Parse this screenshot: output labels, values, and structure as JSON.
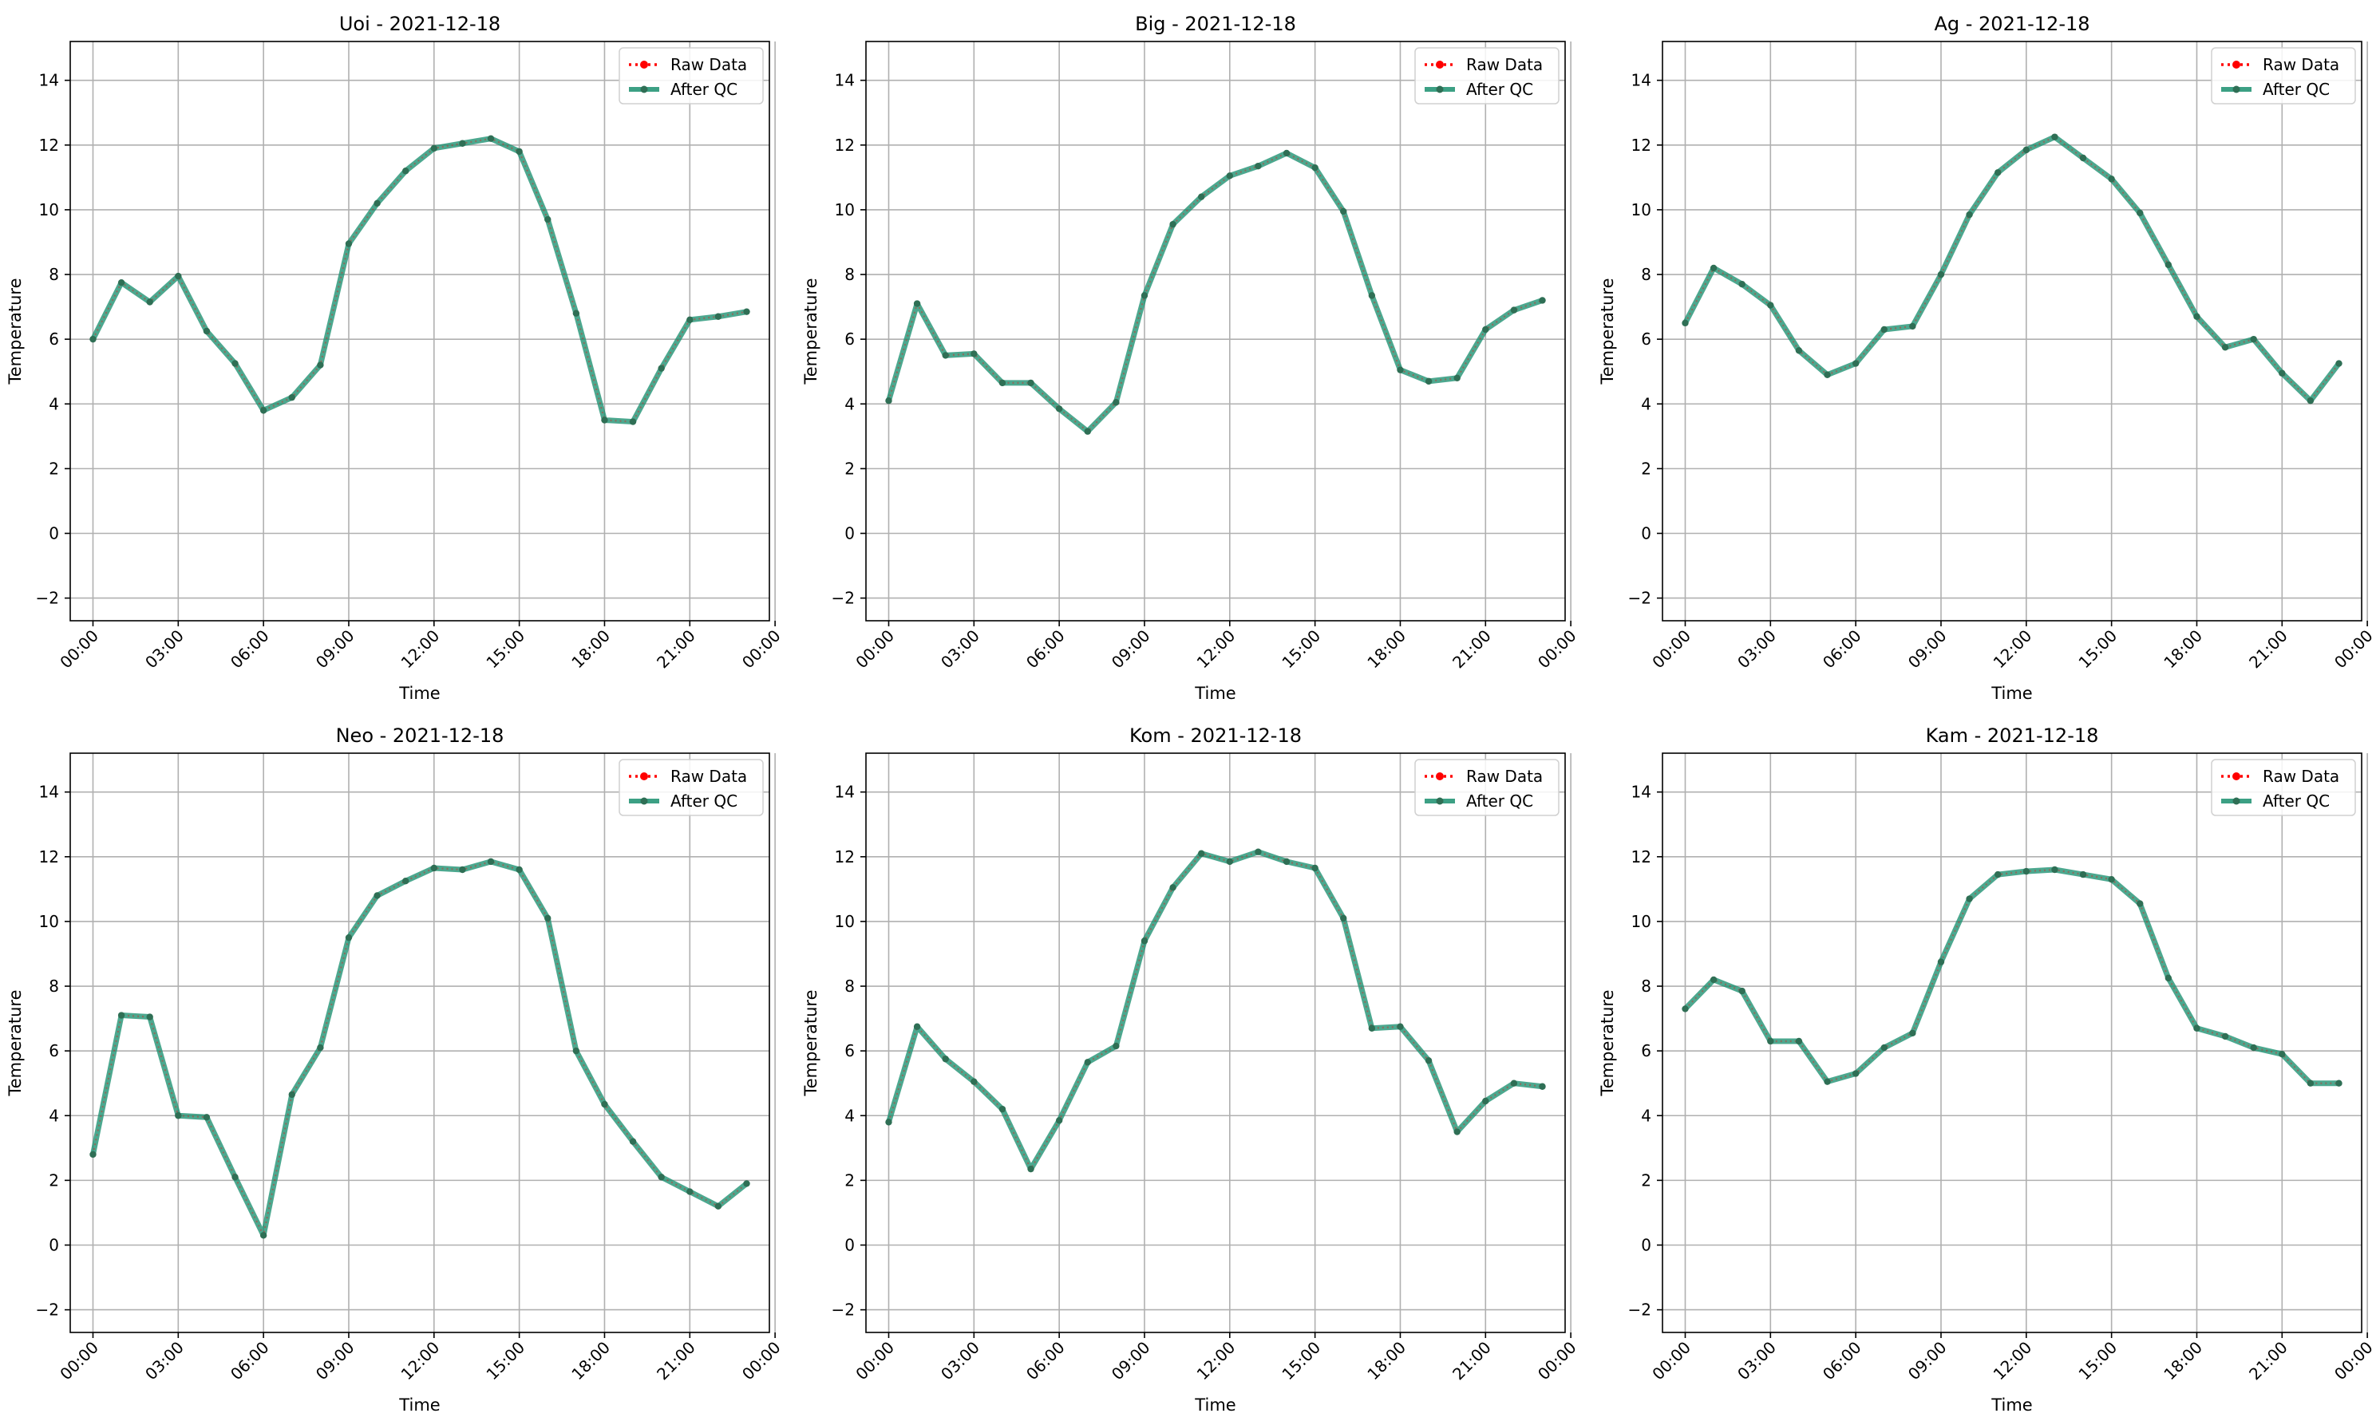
{
  "figure": {
    "legend_labels": {
      "raw": "Raw Data",
      "qc": "After QC"
    },
    "colors": {
      "raw": "#ff0000",
      "qc": "#1a8f6f",
      "grid": "#b0b0b0",
      "marker": "#2f6f55"
    },
    "legend_position": "top-right",
    "grid": true
  },
  "chart_data": [
    {
      "type": "line",
      "title": "Uoi - 2021-12-18",
      "xlabel": "Time",
      "ylabel": "Temperature",
      "ylim": [
        -2.7,
        15.2
      ],
      "yticks": [
        -2,
        0,
        2,
        4,
        6,
        8,
        10,
        12,
        14
      ],
      "xlim": [
        -0.8,
        23.8
      ],
      "xticks": [
        0,
        3,
        6,
        9,
        12,
        15,
        18,
        21,
        24
      ],
      "xticklabels": [
        "00:00",
        "03:00",
        "06:00",
        "09:00",
        "12:00",
        "15:00",
        "18:00",
        "21:00",
        "00:00"
      ],
      "x": [
        0,
        1,
        2,
        3,
        4,
        5,
        6,
        7,
        8,
        9,
        10,
        11,
        12,
        13,
        14,
        15,
        16,
        17,
        18,
        19,
        20,
        21,
        22,
        23
      ],
      "series": [
        {
          "name": "Raw Data",
          "values": [
            6.0,
            7.75,
            7.15,
            7.95,
            6.25,
            5.25,
            3.8,
            4.2,
            5.2,
            8.95,
            10.2,
            11.2,
            11.9,
            12.05,
            12.2,
            11.8,
            9.7,
            6.8,
            3.5,
            3.45,
            5.1,
            6.6,
            6.7,
            6.85
          ]
        },
        {
          "name": "After QC",
          "values": [
            6.0,
            7.75,
            7.15,
            7.95,
            6.25,
            5.25,
            3.8,
            4.2,
            5.2,
            8.95,
            10.2,
            11.2,
            11.9,
            12.05,
            12.2,
            11.8,
            9.7,
            6.8,
            3.5,
            3.45,
            5.1,
            6.6,
            6.7,
            6.85
          ]
        }
      ]
    },
    {
      "type": "line",
      "title": "Big - 2021-12-18",
      "xlabel": "Time",
      "ylabel": "Temperature",
      "ylim": [
        -2.7,
        15.2
      ],
      "yticks": [
        -2,
        0,
        2,
        4,
        6,
        8,
        10,
        12,
        14
      ],
      "xlim": [
        -0.8,
        23.8
      ],
      "xticks": [
        0,
        3,
        6,
        9,
        12,
        15,
        18,
        21,
        24
      ],
      "xticklabels": [
        "00:00",
        "03:00",
        "06:00",
        "09:00",
        "12:00",
        "15:00",
        "18:00",
        "21:00",
        "00:00"
      ],
      "x": [
        0,
        1,
        2,
        3,
        4,
        5,
        6,
        7,
        8,
        9,
        10,
        11,
        12,
        13,
        14,
        15,
        16,
        17,
        18,
        19,
        20,
        21,
        22,
        23
      ],
      "series": [
        {
          "name": "Raw Data",
          "values": [
            4.1,
            7.1,
            5.5,
            5.55,
            4.65,
            4.65,
            3.85,
            3.15,
            4.05,
            7.35,
            9.55,
            10.4,
            11.05,
            11.35,
            11.75,
            11.3,
            9.95,
            7.35,
            5.05,
            4.7,
            4.8,
            6.3,
            6.9,
            7.2
          ]
        },
        {
          "name": "After QC",
          "values": [
            4.1,
            7.1,
            5.5,
            5.55,
            4.65,
            4.65,
            3.85,
            3.15,
            4.05,
            7.35,
            9.55,
            10.4,
            11.05,
            11.35,
            11.75,
            11.3,
            9.95,
            7.35,
            5.05,
            4.7,
            4.8,
            6.3,
            6.9,
            7.2
          ]
        }
      ]
    },
    {
      "type": "line",
      "title": "Ag - 2021-12-18",
      "xlabel": "Time",
      "ylabel": "Temperature",
      "ylim": [
        -2.7,
        15.2
      ],
      "yticks": [
        -2,
        0,
        2,
        4,
        6,
        8,
        10,
        12,
        14
      ],
      "xlim": [
        -0.8,
        23.8
      ],
      "xticks": [
        0,
        3,
        6,
        9,
        12,
        15,
        18,
        21,
        24
      ],
      "xticklabels": [
        "00:00",
        "03:00",
        "06:00",
        "09:00",
        "12:00",
        "15:00",
        "18:00",
        "21:00",
        "00:00"
      ],
      "x": [
        0,
        1,
        2,
        3,
        4,
        5,
        6,
        7,
        8,
        9,
        10,
        11,
        12,
        13,
        14,
        15,
        16,
        17,
        18,
        19,
        20,
        21,
        22,
        23
      ],
      "series": [
        {
          "name": "Raw Data",
          "values": [
            6.5,
            8.2,
            7.7,
            7.05,
            5.65,
            4.9,
            5.25,
            6.3,
            6.4,
            8.0,
            9.85,
            11.15,
            11.85,
            12.25,
            11.6,
            10.95,
            9.9,
            8.3,
            6.7,
            5.75,
            6.0,
            4.95,
            4.1,
            5.25
          ]
        },
        {
          "name": "After QC",
          "values": [
            6.5,
            8.2,
            7.7,
            7.05,
            5.65,
            4.9,
            5.25,
            6.3,
            6.4,
            8.0,
            9.85,
            11.15,
            11.85,
            12.25,
            11.6,
            10.95,
            9.9,
            8.3,
            6.7,
            5.75,
            6.0,
            4.95,
            4.1,
            5.25
          ]
        }
      ]
    },
    {
      "type": "line",
      "title": "Neo - 2021-12-18",
      "xlabel": "Time",
      "ylabel": "Temperature",
      "ylim": [
        -2.7,
        15.2
      ],
      "yticks": [
        -2,
        0,
        2,
        4,
        6,
        8,
        10,
        12,
        14
      ],
      "xlim": [
        -0.8,
        23.8
      ],
      "xticks": [
        0,
        3,
        6,
        9,
        12,
        15,
        18,
        21,
        24
      ],
      "xticklabels": [
        "00:00",
        "03:00",
        "06:00",
        "09:00",
        "12:00",
        "15:00",
        "18:00",
        "21:00",
        "00:00"
      ],
      "x": [
        0,
        1,
        2,
        3,
        4,
        5,
        6,
        7,
        8,
        9,
        10,
        11,
        12,
        13,
        14,
        15,
        16,
        17,
        18,
        19,
        20,
        21,
        22,
        23
      ],
      "series": [
        {
          "name": "Raw Data",
          "values": [
            2.8,
            7.1,
            7.05,
            4.0,
            3.95,
            2.1,
            0.3,
            4.65,
            6.1,
            9.5,
            10.8,
            11.25,
            11.65,
            11.6,
            11.85,
            11.6,
            10.1,
            6.0,
            4.35,
            3.2,
            2.1,
            1.65,
            1.2,
            1.9
          ]
        },
        {
          "name": "After QC",
          "values": [
            2.8,
            7.1,
            7.05,
            4.0,
            3.95,
            2.1,
            0.3,
            4.65,
            6.1,
            9.5,
            10.8,
            11.25,
            11.65,
            11.6,
            11.85,
            11.6,
            10.1,
            6.0,
            4.35,
            3.2,
            2.1,
            1.65,
            1.2,
            1.9
          ]
        }
      ]
    },
    {
      "type": "line",
      "title": "Kom - 2021-12-18",
      "xlabel": "Time",
      "ylabel": "Temperature",
      "ylim": [
        -2.7,
        15.2
      ],
      "yticks": [
        -2,
        0,
        2,
        4,
        6,
        8,
        10,
        12,
        14
      ],
      "xlim": [
        -0.8,
        23.8
      ],
      "xticks": [
        0,
        3,
        6,
        9,
        12,
        15,
        18,
        21,
        24
      ],
      "xticklabels": [
        "00:00",
        "03:00",
        "06:00",
        "09:00",
        "12:00",
        "15:00",
        "18:00",
        "21:00",
        "00:00"
      ],
      "x": [
        0,
        1,
        2,
        3,
        4,
        5,
        6,
        7,
        8,
        9,
        10,
        11,
        12,
        13,
        14,
        15,
        16,
        17,
        18,
        19,
        20,
        21,
        22,
        23
      ],
      "series": [
        {
          "name": "Raw Data",
          "values": [
            3.8,
            6.75,
            5.75,
            5.05,
            4.2,
            2.35,
            3.85,
            5.65,
            6.15,
            9.4,
            11.05,
            12.1,
            11.85,
            12.15,
            11.85,
            11.65,
            10.1,
            6.7,
            6.75,
            5.7,
            3.5,
            4.45,
            5.0,
            4.9
          ]
        },
        {
          "name": "After QC",
          "values": [
            3.8,
            6.75,
            5.75,
            5.05,
            4.2,
            2.35,
            3.85,
            5.65,
            6.15,
            9.4,
            11.05,
            12.1,
            11.85,
            12.15,
            11.85,
            11.65,
            10.1,
            6.7,
            6.75,
            5.7,
            3.5,
            4.45,
            5.0,
            4.9
          ]
        }
      ]
    },
    {
      "type": "line",
      "title": "Kam - 2021-12-18",
      "xlabel": "Time",
      "ylabel": "Temperature",
      "ylim": [
        -2.7,
        15.2
      ],
      "yticks": [
        -2,
        0,
        2,
        4,
        6,
        8,
        10,
        12,
        14
      ],
      "xlim": [
        -0.8,
        23.8
      ],
      "xticks": [
        0,
        3,
        6,
        9,
        12,
        15,
        18,
        21,
        24
      ],
      "xticklabels": [
        "00:00",
        "03:00",
        "06:00",
        "09:00",
        "12:00",
        "15:00",
        "18:00",
        "21:00",
        "00:00"
      ],
      "x": [
        0,
        1,
        2,
        3,
        4,
        5,
        6,
        7,
        8,
        9,
        10,
        11,
        12,
        13,
        14,
        15,
        16,
        17,
        18,
        19,
        20,
        21,
        22,
        23
      ],
      "series": [
        {
          "name": "Raw Data",
          "values": [
            7.3,
            8.2,
            7.85,
            6.3,
            6.3,
            5.05,
            5.3,
            6.1,
            6.55,
            8.75,
            10.7,
            11.45,
            11.55,
            11.6,
            11.45,
            11.3,
            10.55,
            8.25,
            6.7,
            6.45,
            6.1,
            5.9,
            5.0,
            5.0
          ]
        },
        {
          "name": "After QC",
          "values": [
            7.3,
            8.2,
            7.85,
            6.3,
            6.3,
            5.05,
            5.3,
            6.1,
            6.55,
            8.75,
            10.7,
            11.45,
            11.55,
            11.6,
            11.45,
            11.3,
            10.55,
            8.25,
            6.7,
            6.45,
            6.1,
            5.9,
            5.0,
            5.0
          ]
        }
      ]
    }
  ]
}
